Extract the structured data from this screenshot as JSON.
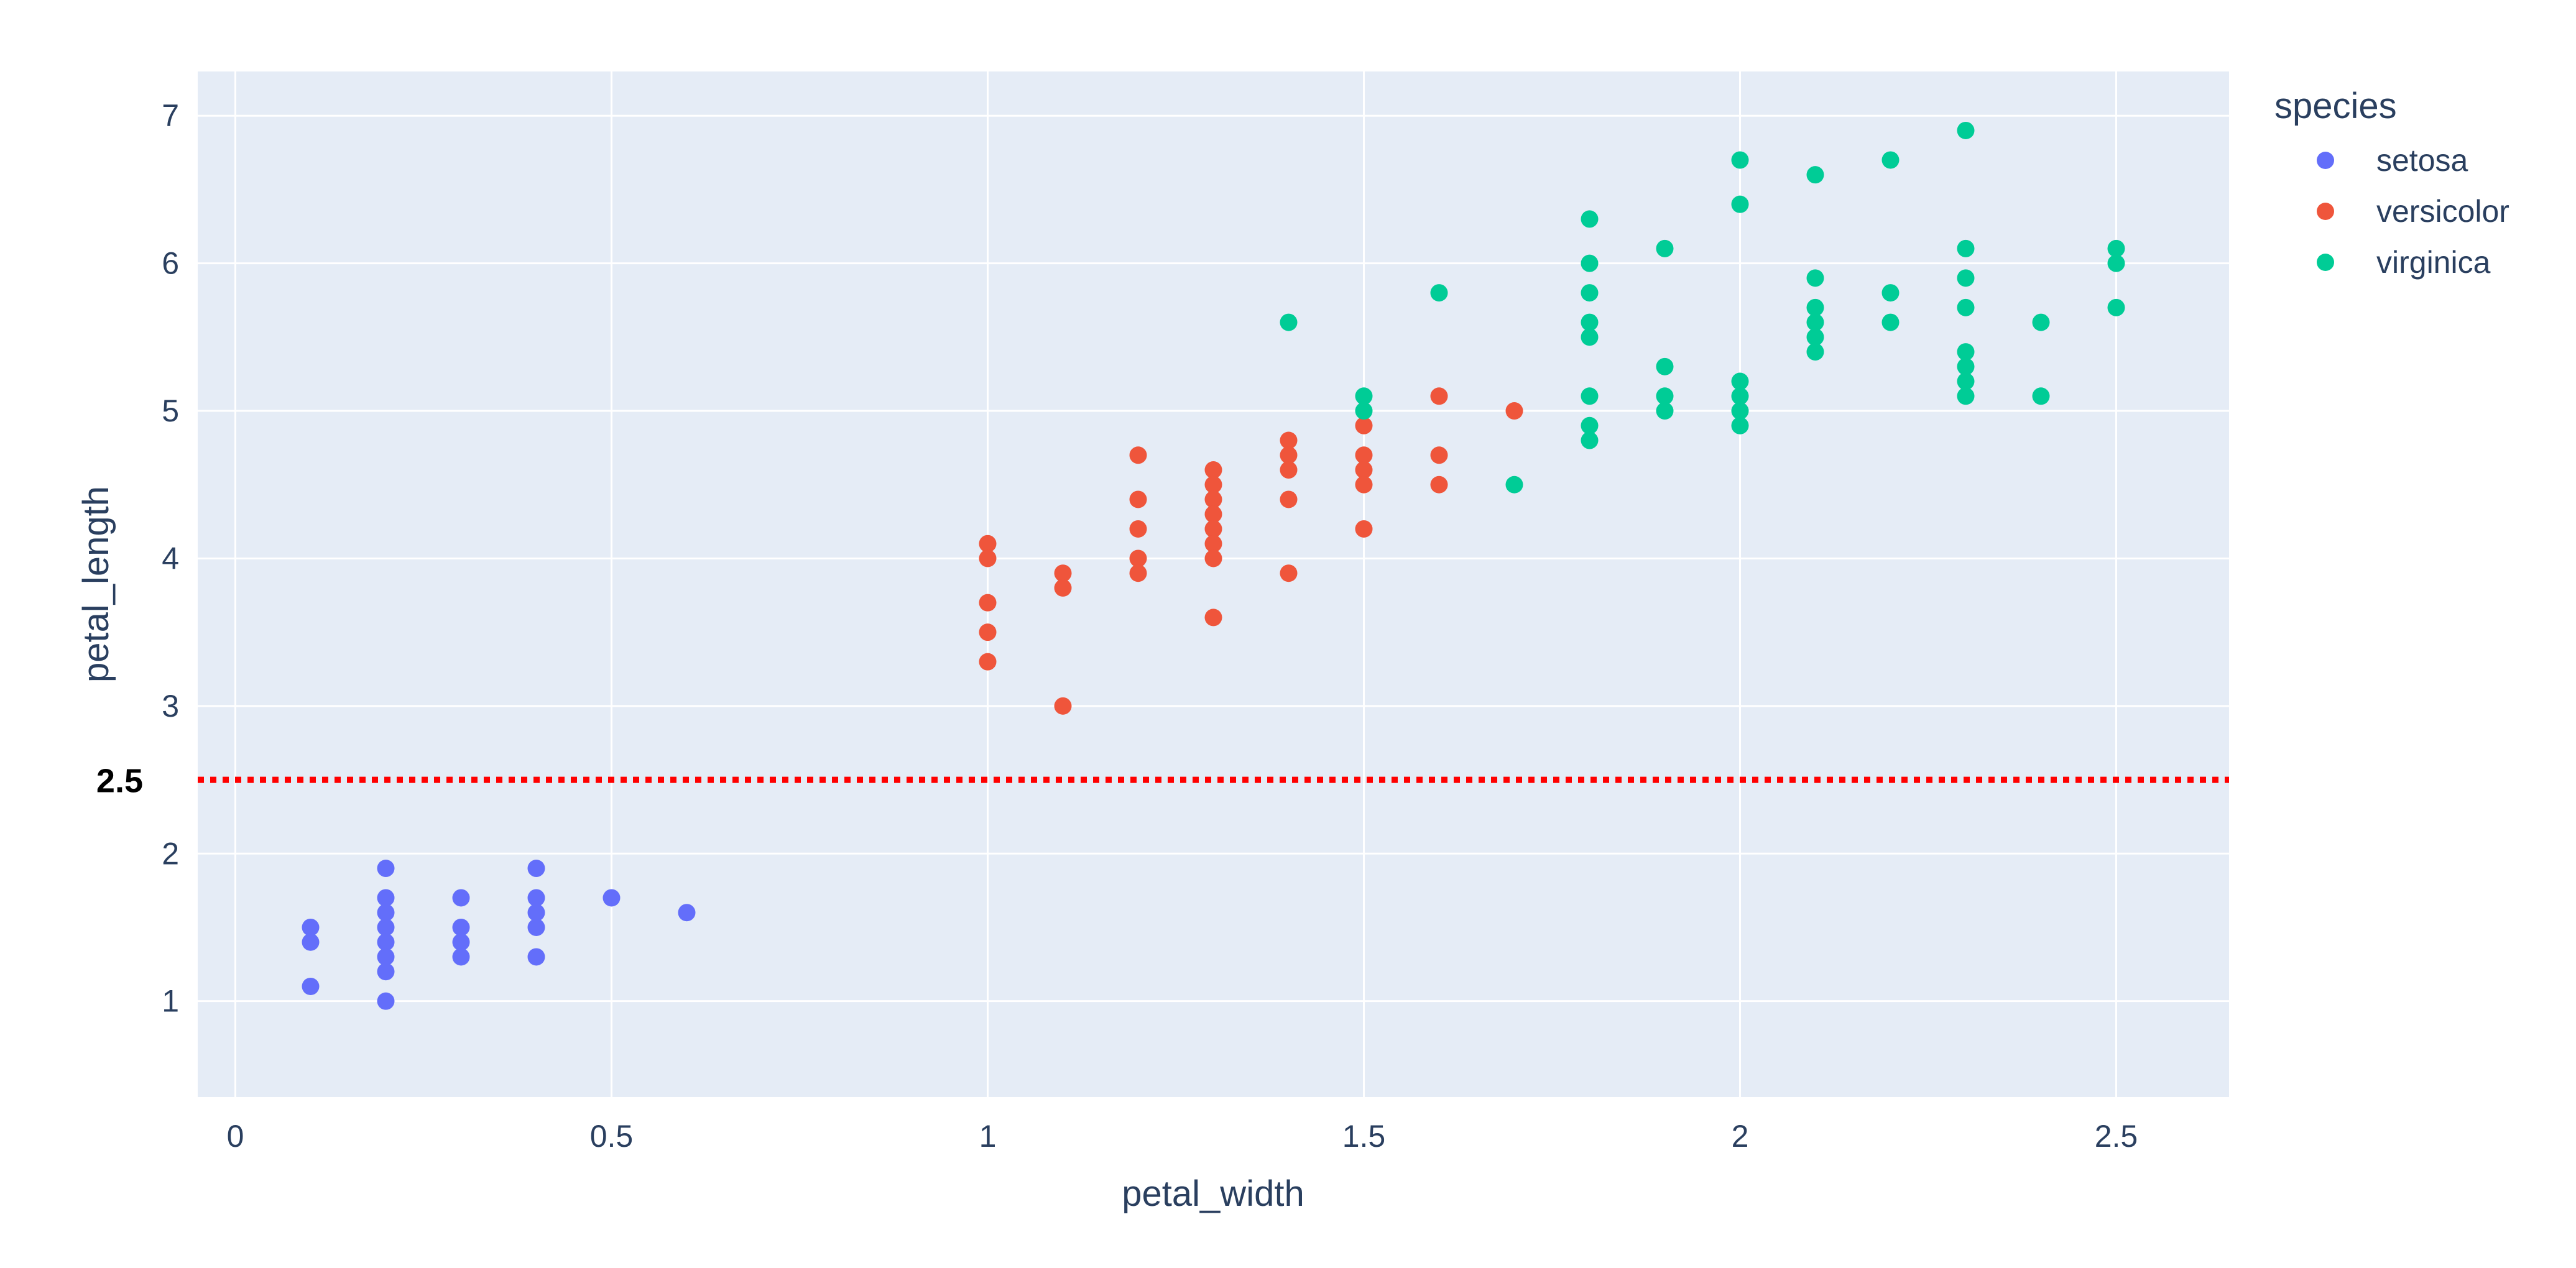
{
  "chart_data": {
    "type": "scatter",
    "title": "",
    "xlabel": "petal_width",
    "ylabel": "petal_length",
    "xlim": [
      -0.05,
      2.65
    ],
    "ylim": [
      0.35,
      7.3
    ],
    "x_ticks": [
      0,
      0.5,
      1,
      1.5,
      2,
      2.5
    ],
    "x_tick_labels": [
      "0",
      "0.5",
      "1",
      "1.5",
      "2",
      "2.5"
    ],
    "y_ticks": [
      1,
      2,
      3,
      4,
      5,
      6,
      7
    ],
    "y_tick_labels": [
      "1",
      "2",
      "3",
      "4",
      "5",
      "6",
      "7"
    ],
    "grid": true,
    "plot_bg": "#E5ECF6",
    "legend": {
      "title": "species",
      "position": "top-right"
    },
    "reference_line": {
      "y": 2.5,
      "label": "2.5",
      "color": "#FF0000",
      "style": "dotted"
    },
    "series": [
      {
        "name": "setosa",
        "color": "#636EFA",
        "points": [
          [
            0.1,
            1.5
          ],
          [
            0.1,
            1.4
          ],
          [
            0.1,
            1.1
          ],
          [
            0.2,
            1.9
          ],
          [
            0.2,
            1.7
          ],
          [
            0.2,
            1.6
          ],
          [
            0.2,
            1.5
          ],
          [
            0.2,
            1.4
          ],
          [
            0.2,
            1.3
          ],
          [
            0.2,
            1.2
          ],
          [
            0.2,
            1.0
          ],
          [
            0.3,
            1.7
          ],
          [
            0.3,
            1.5
          ],
          [
            0.3,
            1.4
          ],
          [
            0.3,
            1.3
          ],
          [
            0.4,
            1.9
          ],
          [
            0.4,
            1.7
          ],
          [
            0.4,
            1.6
          ],
          [
            0.4,
            1.5
          ],
          [
            0.4,
            1.3
          ],
          [
            0.5,
            1.7
          ],
          [
            0.6,
            1.6
          ]
        ]
      },
      {
        "name": "versicolor",
        "color": "#EF553B",
        "points": [
          [
            1.0,
            4.1
          ],
          [
            1.0,
            4.0
          ],
          [
            1.0,
            3.7
          ],
          [
            1.0,
            3.5
          ],
          [
            1.0,
            3.3
          ],
          [
            1.1,
            3.9
          ],
          [
            1.1,
            3.8
          ],
          [
            1.1,
            3.0
          ],
          [
            1.2,
            4.7
          ],
          [
            1.2,
            4.4
          ],
          [
            1.2,
            4.2
          ],
          [
            1.2,
            4.0
          ],
          [
            1.2,
            3.9
          ],
          [
            1.3,
            4.6
          ],
          [
            1.3,
            4.5
          ],
          [
            1.3,
            4.4
          ],
          [
            1.3,
            4.3
          ],
          [
            1.3,
            4.2
          ],
          [
            1.3,
            4.1
          ],
          [
            1.3,
            4.0
          ],
          [
            1.3,
            3.6
          ],
          [
            1.4,
            4.8
          ],
          [
            1.4,
            4.7
          ],
          [
            1.4,
            4.6
          ],
          [
            1.4,
            4.4
          ],
          [
            1.4,
            3.9
          ],
          [
            1.5,
            4.9
          ],
          [
            1.5,
            4.7
          ],
          [
            1.5,
            4.6
          ],
          [
            1.5,
            4.5
          ],
          [
            1.5,
            4.2
          ],
          [
            1.6,
            5.1
          ],
          [
            1.6,
            4.7
          ],
          [
            1.6,
            4.5
          ],
          [
            1.7,
            5.0
          ]
        ]
      },
      {
        "name": "virginica",
        "color": "#00CC96",
        "points": [
          [
            1.4,
            5.6
          ],
          [
            1.5,
            5.1
          ],
          [
            1.5,
            5.0
          ],
          [
            1.6,
            5.8
          ],
          [
            1.7,
            4.5
          ],
          [
            1.8,
            6.3
          ],
          [
            1.8,
            6.0
          ],
          [
            1.8,
            5.8
          ],
          [
            1.8,
            5.6
          ],
          [
            1.8,
            5.5
          ],
          [
            1.8,
            5.1
          ],
          [
            1.8,
            4.9
          ],
          [
            1.8,
            4.8
          ],
          [
            1.9,
            6.1
          ],
          [
            1.9,
            5.3
          ],
          [
            1.9,
            5.1
          ],
          [
            1.9,
            5.0
          ],
          [
            2.0,
            6.7
          ],
          [
            2.0,
            6.4
          ],
          [
            2.0,
            5.2
          ],
          [
            2.0,
            5.1
          ],
          [
            2.0,
            5.0
          ],
          [
            2.0,
            4.9
          ],
          [
            2.1,
            6.6
          ],
          [
            2.1,
            5.9
          ],
          [
            2.1,
            5.7
          ],
          [
            2.1,
            5.6
          ],
          [
            2.1,
            5.5
          ],
          [
            2.1,
            5.4
          ],
          [
            2.2,
            6.7
          ],
          [
            2.2,
            5.8
          ],
          [
            2.2,
            5.6
          ],
          [
            2.3,
            6.9
          ],
          [
            2.3,
            6.1
          ],
          [
            2.3,
            5.9
          ],
          [
            2.3,
            5.7
          ],
          [
            2.3,
            5.4
          ],
          [
            2.3,
            5.3
          ],
          [
            2.3,
            5.2
          ],
          [
            2.3,
            5.1
          ],
          [
            2.4,
            5.6
          ],
          [
            2.4,
            5.1
          ],
          [
            2.5,
            6.1
          ],
          [
            2.5,
            6.0
          ],
          [
            2.5,
            5.7
          ]
        ]
      }
    ]
  }
}
